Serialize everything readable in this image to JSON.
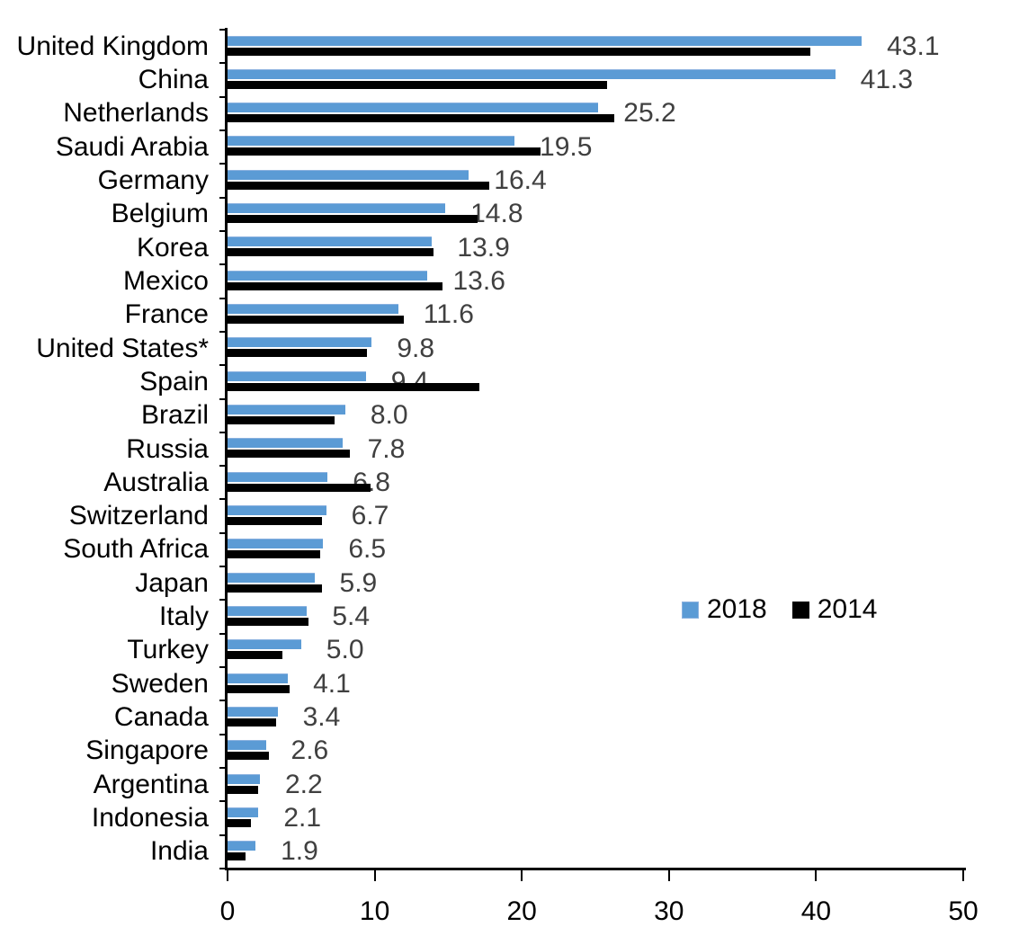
{
  "chart_data": {
    "type": "bar",
    "orientation": "horizontal",
    "title": "",
    "xlabel": "",
    "ylabel": "",
    "xlim": [
      0,
      50
    ],
    "x_ticks": [
      "0",
      "10",
      "20",
      "30",
      "40",
      "50"
    ],
    "grid": false,
    "legend_position": "center-right",
    "categories": [
      "United Kingdom",
      "China",
      "Netherlands",
      "Saudi Arabia",
      "Germany",
      "Belgium",
      "Korea",
      "Mexico",
      "France",
      "United States*",
      "Spain",
      "Brazil",
      "Russia",
      "Australia",
      "Switzerland",
      "South Africa",
      "Japan",
      "Italy",
      "Turkey",
      "Sweden",
      "Canada",
      "Singapore",
      "Argentina",
      "Indonesia",
      "India"
    ],
    "series": [
      {
        "name": "2018",
        "color": "#5B9BD5",
        "values": [
          43.1,
          41.3,
          25.2,
          19.5,
          16.4,
          14.8,
          13.9,
          13.6,
          11.6,
          9.8,
          9.4,
          8.0,
          7.8,
          6.8,
          6.7,
          6.5,
          5.9,
          5.4,
          5.0,
          4.1,
          3.4,
          2.6,
          2.2,
          2.1,
          1.9
        ]
      },
      {
        "name": "2014",
        "color": "#000000",
        "values": [
          39.6,
          25.8,
          26.3,
          21.3,
          17.8,
          17.0,
          14.0,
          14.6,
          12.0,
          9.5,
          17.1,
          7.3,
          8.3,
          9.7,
          6.4,
          6.3,
          6.4,
          5.5,
          3.7,
          4.2,
          3.3,
          2.8,
          2.1,
          1.6,
          1.2
        ]
      }
    ],
    "data_labels": {
      "series": "2018",
      "color": "#404040",
      "values": [
        "43.1",
        "41.3",
        "25.2",
        "19.5",
        "16.4",
        "14.8",
        "13.9",
        "13.6",
        "11.6",
        "9.8",
        "9.4",
        "8.0",
        "7.8",
        "6.8",
        "6.7",
        "6.5",
        "5.9",
        "5.4",
        "5.0",
        "4.1",
        "3.4",
        "2.6",
        "2.2",
        "2.1",
        "1.9"
      ]
    }
  },
  "legend": {
    "items": [
      {
        "label": "2018",
        "color": "#5B9BD5"
      },
      {
        "label": "2014",
        "color": "#000000"
      }
    ]
  },
  "colors": {
    "series_2018": "#5B9BD5",
    "series_2014": "#000000",
    "axis": "#000000",
    "data_label_text": "#404040",
    "background": "#FFFFFF"
  }
}
